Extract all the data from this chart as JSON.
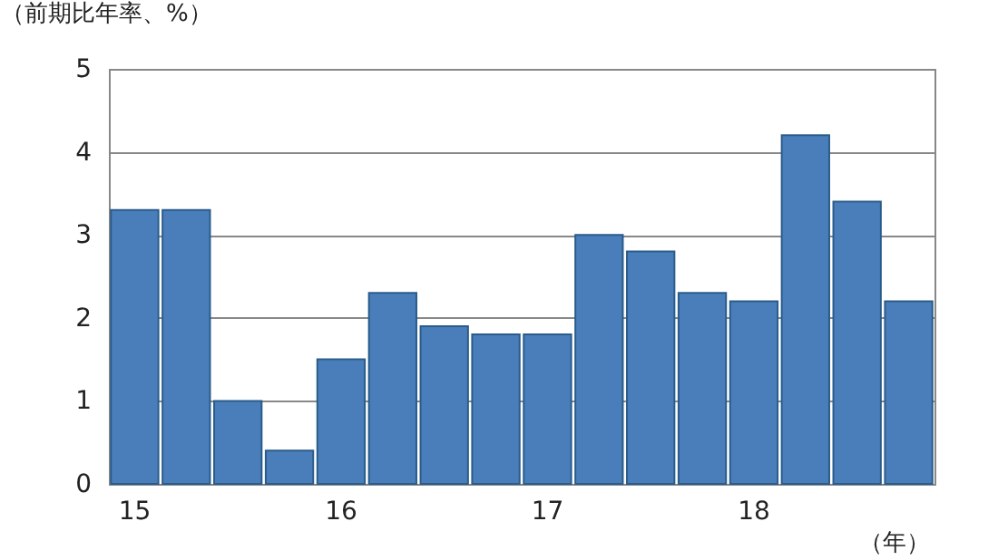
{
  "chart_data": {
    "type": "bar",
    "ylabel": "（前期比年率、%）",
    "xlabel": "（年）",
    "categories": [
      "15",
      null,
      null,
      null,
      "16",
      null,
      null,
      null,
      "17",
      null,
      null,
      null,
      "18",
      null,
      null,
      null
    ],
    "values": [
      3.3,
      3.3,
      1.0,
      0.4,
      1.5,
      2.3,
      1.9,
      1.8,
      1.8,
      3.0,
      2.8,
      2.3,
      2.2,
      4.2,
      3.4,
      2.2
    ],
    "color": "#4a7ebb",
    "ylim": [
      0,
      5
    ],
    "yticks": [
      0,
      1,
      2,
      3,
      4,
      5
    ],
    "grid": "y"
  }
}
